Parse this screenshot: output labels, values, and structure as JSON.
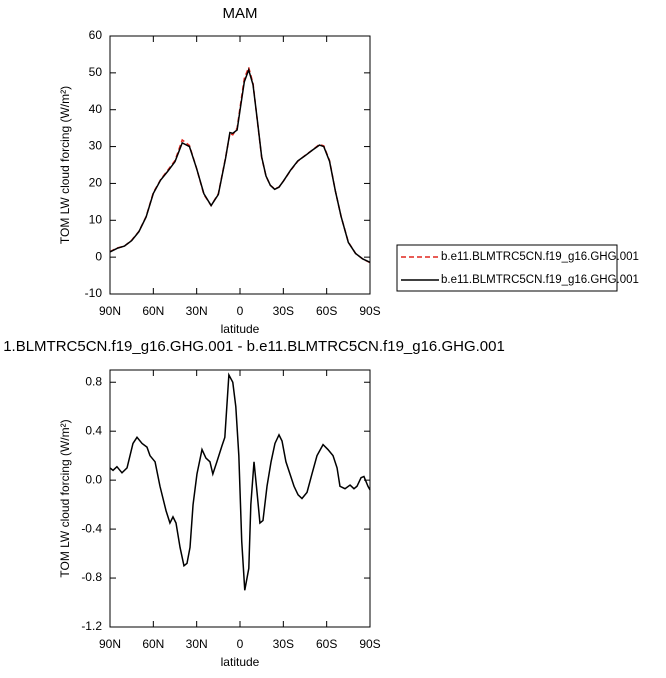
{
  "chart_data": [
    {
      "type": "line",
      "title": "MAM",
      "xlabel": "latitude",
      "ylabel": "TOM LW cloud forcing (W/m²)",
      "x": [
        90,
        85,
        80,
        75,
        70,
        65,
        60,
        55,
        50,
        45,
        40,
        35,
        30,
        25,
        20,
        15,
        10,
        7,
        5,
        2,
        0,
        -3,
        -6,
        -9,
        -12,
        -15,
        -18,
        -21,
        -24,
        -27,
        -30,
        -35,
        -40,
        -45,
        -50,
        -55,
        -58,
        -62,
        -66,
        -70,
        -75,
        -80,
        -85,
        -90
      ],
      "series": [
        {
          "name": "b.e11.BLMTRC5CN.f19_g16.GHG.001",
          "color": "#e0261e",
          "linestyle": "dashed",
          "values": [
            1.5,
            2.5,
            3,
            4.6,
            7,
            11,
            17.5,
            21,
            23.6,
            26.2,
            31.8,
            30.3,
            24,
            17,
            14,
            17.2,
            27,
            33.5,
            33.2,
            35,
            40.5,
            48.5,
            51.5,
            47.2,
            37,
            27,
            22,
            19.5,
            18.5,
            19,
            20.6,
            23.5,
            26,
            27.6,
            29,
            30.6,
            30.2,
            26.2,
            18,
            11,
            4.1,
            1,
            -0.5,
            -1.5
          ]
        },
        {
          "name": "b.e11.BLMTRC5CN.f19_g16.GHG.001",
          "color": "#000000",
          "linestyle": "solid",
          "values": [
            1.4,
            2.4,
            3,
            4.5,
            6.9,
            10.9,
            17.3,
            20.9,
            23.3,
            25.9,
            31,
            30,
            24,
            17.2,
            14,
            17,
            26.8,
            33.8,
            33.6,
            34.5,
            39.8,
            47.6,
            50.8,
            46.8,
            37.2,
            27.2,
            22,
            19.5,
            18.4,
            19,
            20.6,
            23.6,
            26.1,
            27.5,
            29,
            30.4,
            30,
            26,
            18,
            11,
            4,
            1,
            -0.5,
            -1.4
          ]
        }
      ],
      "xlim": [
        90,
        -90
      ],
      "ylim": [
        -10,
        60
      ],
      "xticks": [
        {
          "value": 90,
          "label": "90N"
        },
        {
          "value": 60,
          "label": "60N"
        },
        {
          "value": 30,
          "label": "30N"
        },
        0,
        {
          "value": -30,
          "label": "30S"
        },
        {
          "value": -60,
          "label": "60S"
        },
        {
          "value": -90,
          "label": "90S"
        }
      ],
      "yticks": [
        -10,
        0,
        10,
        20,
        30,
        40,
        50,
        60
      ],
      "legend": "right"
    },
    {
      "type": "line",
      "title": "1.BLMTRC5CN.f19_g16.GHG.001 - b.e11.BLMTRC5CN.f19_g16.GHG.001",
      "xlabel": "latitude",
      "ylabel": "TOM LW cloud forcing (W/m²)",
      "x": [
        90,
        87.9,
        85.2,
        81.7,
        78.2,
        74.1,
        71.3,
        67.8,
        64.4,
        62.3,
        58.8,
        55.4,
        51.2,
        48.5,
        46.4,
        44.3,
        41.5,
        38.8,
        36.7,
        34.6,
        32.5,
        29.8,
        26.3,
        23.6,
        20.8,
        18.8,
        16,
        12.5,
        10.5,
        7.7,
        5,
        2.9,
        0.8,
        -1.2,
        -3.3,
        -6.1,
        -7.5,
        -9.7,
        -11.8,
        -13.8,
        -15.9,
        -18.7,
        -21.5,
        -24.2,
        -27,
        -29.1,
        -31.8,
        -34.6,
        -37.4,
        -40.2,
        -42.9,
        -46.4,
        -49.8,
        -53.3,
        -57.5,
        -60.9,
        -64.4,
        -67.2,
        -69.2,
        -72.7,
        -76.2,
        -78.9,
        -81,
        -83.8,
        -85.8,
        -88.6,
        -90
      ],
      "series": [
        {
          "color": "#000000",
          "linestyle": "solid",
          "values": [
            0.1,
            0.08,
            0.11,
            0.06,
            0.1,
            0.3,
            0.35,
            0.3,
            0.27,
            0.2,
            0.15,
            -0.05,
            -0.25,
            -0.35,
            -0.3,
            -0.35,
            -0.55,
            -0.7,
            -0.68,
            -0.55,
            -0.2,
            0.05,
            0.25,
            0.18,
            0.15,
            0.05,
            0.15,
            0.28,
            0.35,
            0.86,
            0.8,
            0.6,
            0.2,
            -0.5,
            -0.9,
            -0.72,
            -0.2,
            0.15,
            -0.1,
            -0.35,
            -0.33,
            -0.05,
            0.15,
            0.3,
            0.37,
            0.32,
            0.15,
            0.05,
            -0.05,
            -0.12,
            -0.15,
            -0.1,
            0.05,
            0.2,
            0.29,
            0.25,
            0.2,
            0.1,
            -0.05,
            -0.07,
            -0.04,
            -0.07,
            -0.05,
            0.02,
            0.03,
            -0.05,
            -0.08
          ]
        }
      ],
      "xlim": [
        90,
        -90
      ],
      "ylim": [
        -1.2,
        0.9
      ],
      "xticks": [
        {
          "value": 90,
          "label": "90N"
        },
        {
          "value": 60,
          "label": "60N"
        },
        {
          "value": 30,
          "label": "30N"
        },
        0,
        {
          "value": -30,
          "label": "30S"
        },
        {
          "value": -60,
          "label": "60S"
        },
        {
          "value": -90,
          "label": "90S"
        }
      ],
      "yticks": [
        -1.2,
        -0.8,
        -0.4,
        {
          "value": 0,
          "label": "0.0"
        },
        0.4,
        0.8
      ]
    }
  ]
}
